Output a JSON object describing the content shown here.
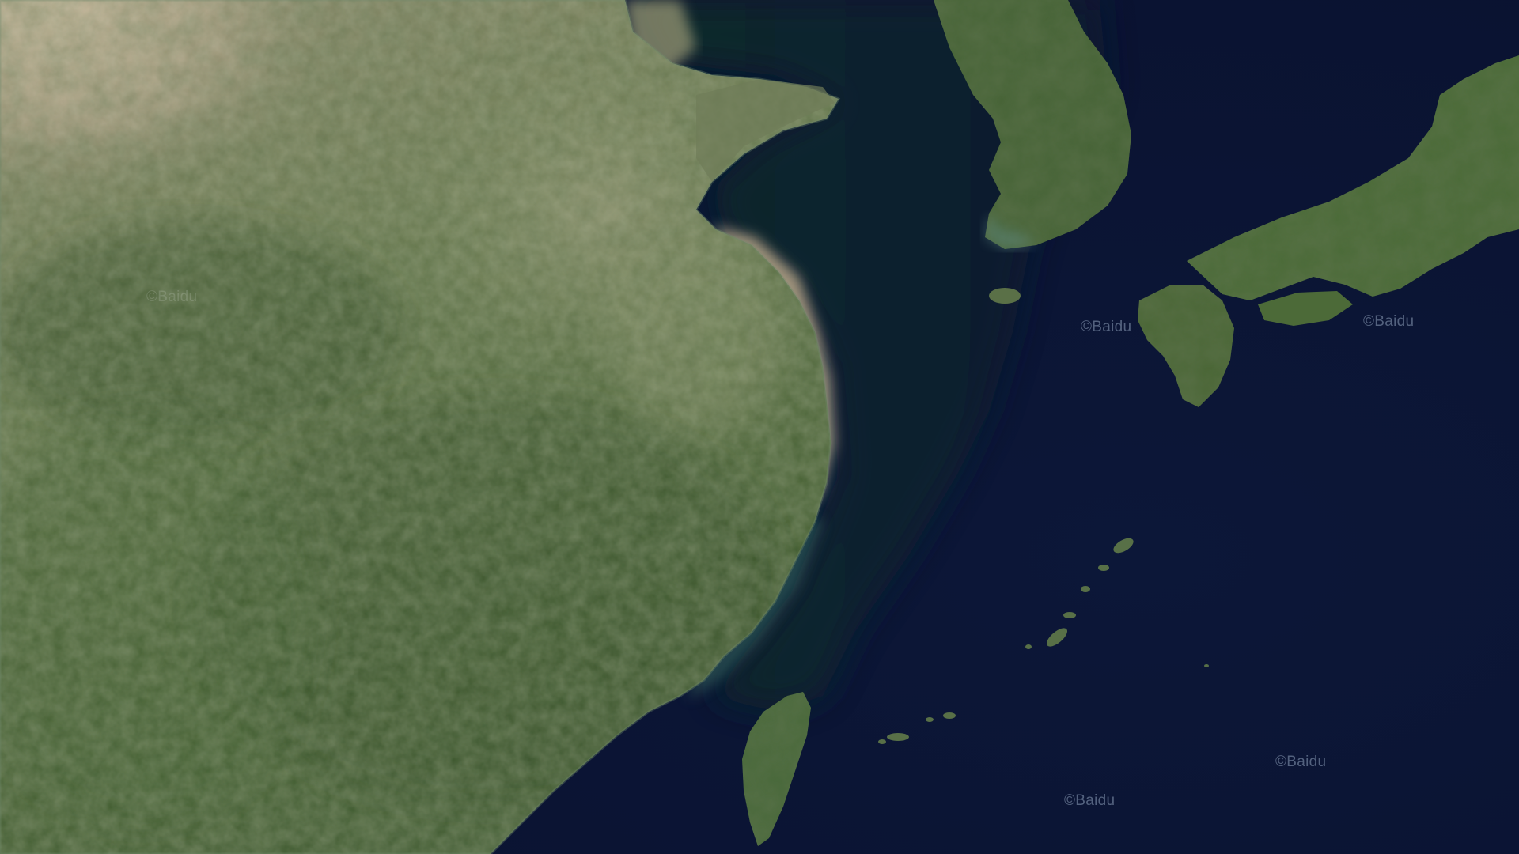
{
  "map": {
    "view": "satellite",
    "region": "east-asia",
    "watermark_text": "©Baidu",
    "colors": {
      "ocean_deep": "#0b1433",
      "ocean_mid": "#0f1b3d",
      "shelf_sea": "#0a2a2a",
      "coastal_silt": "#b9a889",
      "land_green": "#3f5a2e",
      "land_dark_green": "#2c4420",
      "plains": "#7e8a63",
      "desert": "#b9ab90"
    }
  },
  "watermarks": [
    {
      "text": "©Baidu"
    },
    {
      "text": "©Baidu"
    },
    {
      "text": "©Baidu"
    },
    {
      "text": "©Baidu"
    },
    {
      "text": "©Baidu"
    }
  ]
}
